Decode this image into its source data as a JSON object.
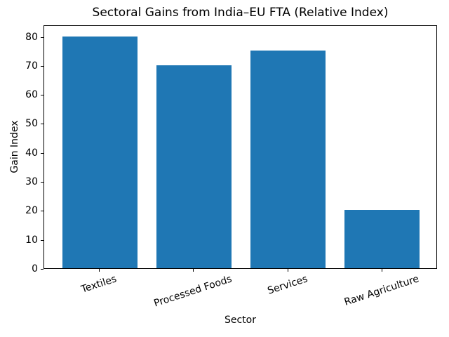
{
  "chart_data": {
    "type": "bar",
    "title": "Sectoral Gains from India–EU FTA (Relative Index)",
    "xlabel": "Sector",
    "ylabel": "Gain Index",
    "categories": [
      "Textiles",
      "Processed Foods",
      "Services",
      "Raw Agriculture"
    ],
    "values": [
      80,
      70,
      75,
      20
    ],
    "yticks": [
      0,
      10,
      20,
      30,
      40,
      50,
      60,
      70,
      80
    ],
    "ylim": [
      0,
      84
    ],
    "bar_color": "#1f77b4",
    "axis_color": "#000000",
    "background_color": "#ffffff",
    "grid": false,
    "legend_position": "none",
    "x_tick_rotation_deg": 18
  }
}
